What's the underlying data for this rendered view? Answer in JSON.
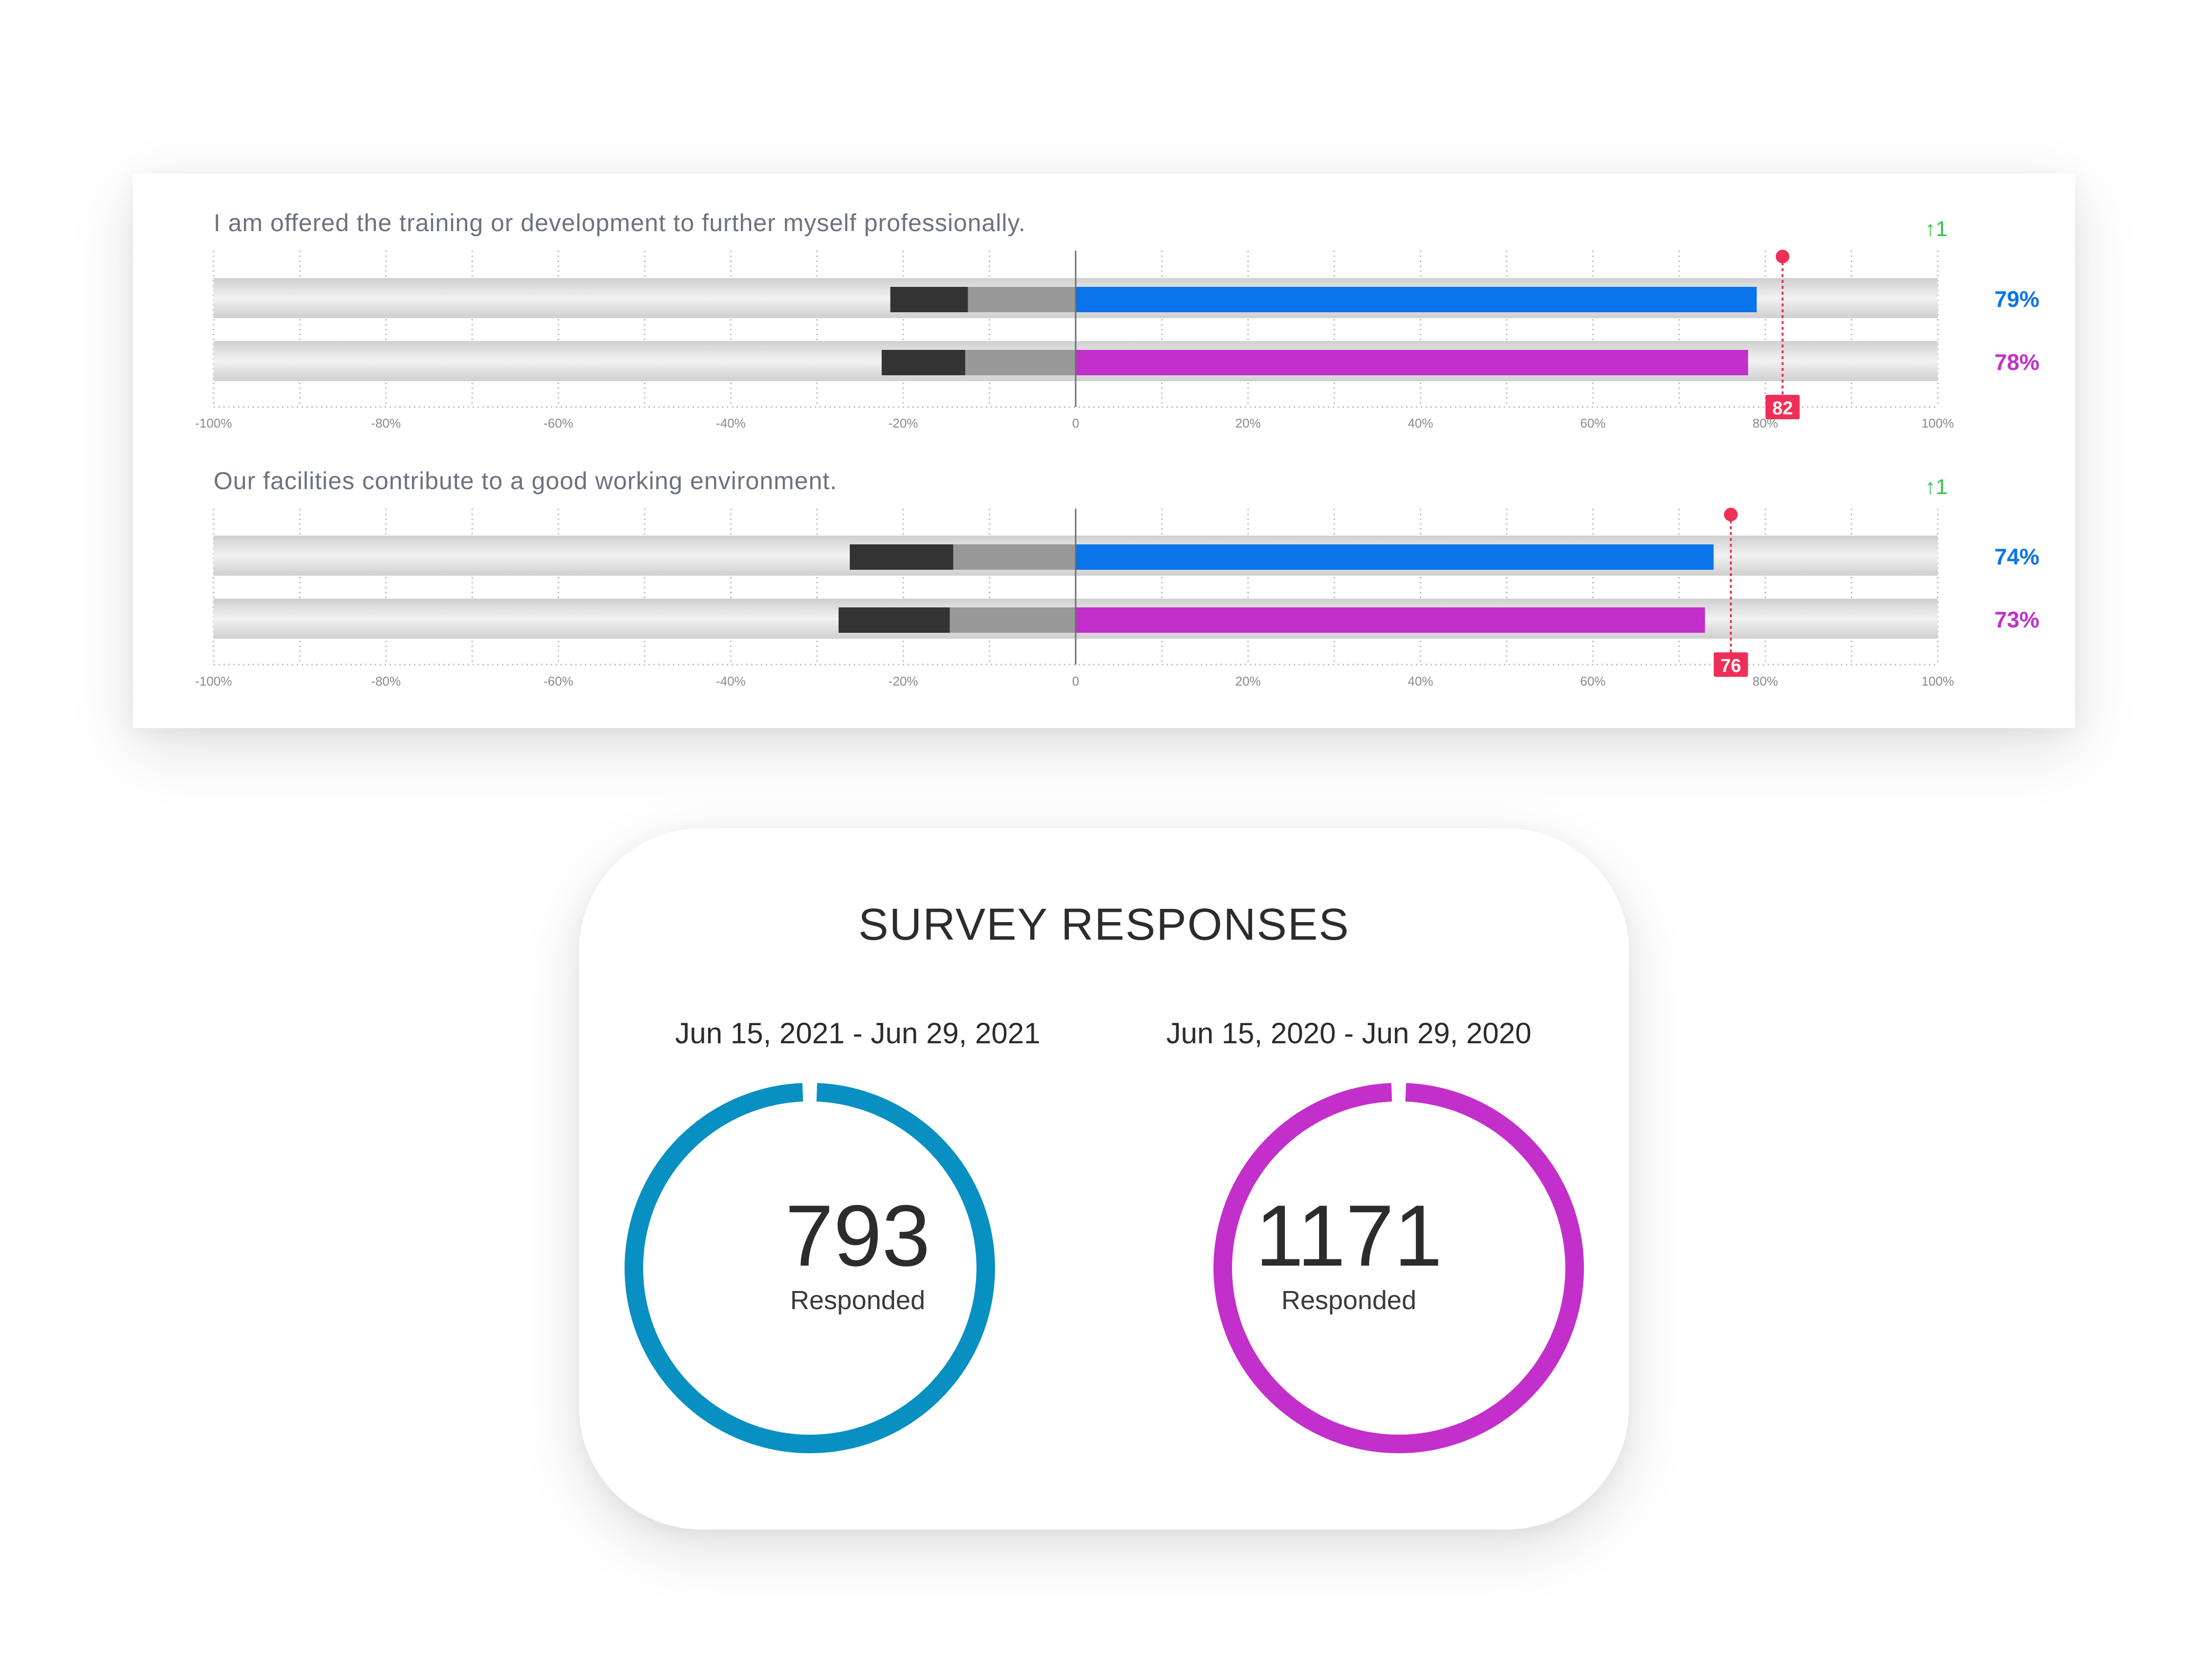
{
  "questions": [
    {
      "text": "I am offered the training or development to further myself professionally.",
      "trend": "↑1",
      "benchmark": 82,
      "bars": [
        {
          "color": "#0a74ea",
          "positive": 79,
          "neg_light": 12.5,
          "neg_dark": 21.5,
          "label": "79%"
        },
        {
          "color": "#c22fcb",
          "positive": 78,
          "neg_light": 12.8,
          "neg_dark": 22.5,
          "label": "78%"
        }
      ]
    },
    {
      "text": "Our facilities contribute to a good working environment.",
      "trend": "↑1",
      "benchmark": 76,
      "bars": [
        {
          "color": "#0a74ea",
          "positive": 74,
          "neg_light": 14.2,
          "neg_dark": 26.2,
          "label": "74%"
        },
        {
          "color": "#c22fcb",
          "positive": 73,
          "neg_light": 14.6,
          "neg_dark": 27.5,
          "label": "73%"
        }
      ]
    }
  ],
  "axis_ticks": [
    "-100%",
    "-80%",
    "-60%",
    "-40%",
    "-20%",
    "0",
    "20%",
    "40%",
    "60%",
    "80%",
    "100%"
  ],
  "survey": {
    "title": "SURVEY RESPONSES",
    "periods": [
      {
        "range": "Jun 15, 2021 - Jun 29, 2021",
        "count": "793",
        "label": "Responded",
        "color": "#0890c2"
      },
      {
        "range": "Jun 15, 2020 - Jun 29, 2020",
        "count": "1171",
        "label": "Responded",
        "color": "#c22fcb"
      }
    ]
  },
  "colors": {
    "trend_up": "#2fc44e",
    "benchmark": "#ef2f57",
    "neg_dark": "#333333",
    "neg_light": "#999999",
    "question_text": "#6b7280"
  }
}
